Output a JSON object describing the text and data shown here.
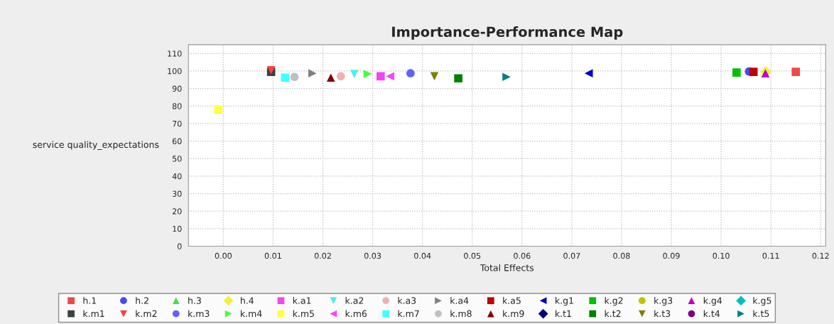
{
  "chart_data": {
    "type": "scatter",
    "title": "Importance-Performance Map",
    "xlabel": "Total Effects",
    "ylabel": "service quality_expectations",
    "xlim": [
      -0.007,
      0.121
    ],
    "xticks": [
      {
        "value": 0,
        "label": "0.00"
      },
      0.01,
      0.02,
      0.03,
      0.04,
      0.05,
      0.06,
      0.07,
      0.08,
      0.09,
      {
        "value": 0.1,
        "label": "0.10"
      },
      0.11,
      {
        "value": 0.12,
        "label": "0.12"
      }
    ],
    "ylim": [
      0,
      115
    ],
    "yticks": [
      0,
      10,
      20,
      30,
      40,
      50,
      60,
      70,
      80,
      90,
      100,
      110
    ],
    "grid": true,
    "legend": "bottom",
    "series": [
      {
        "name": "h.1",
        "color": "#f04848",
        "marker": "square",
        "x": [
          0.115
        ],
        "values": [
          99.5
        ]
      },
      {
        "name": "h.2",
        "color": "#4848f0",
        "marker": "circle",
        "x": [
          0.1056
        ],
        "values": [
          99.7
        ]
      },
      {
        "name": "h.3",
        "color": "#48e048",
        "marker": "triangle",
        "x": [
          null
        ],
        "values": [
          null
        ]
      },
      {
        "name": "h.4",
        "color": "#f0f040",
        "marker": "diamond",
        "x": [
          0.109
        ],
        "values": [
          99.5
        ]
      },
      {
        "name": "k.a1",
        "color": "#f048f0",
        "marker": "square",
        "x": [
          0.0316
        ],
        "values": [
          97
        ]
      },
      {
        "name": "k.a2",
        "color": "#48f0f0",
        "marker": "triangle_down",
        "x": [
          0.0263
        ],
        "values": [
          98.3
        ]
      },
      {
        "name": "k.a3",
        "color": "#f0b0b0",
        "marker": "circle",
        "x": [
          0.0236
        ],
        "values": [
          97
        ]
      },
      {
        "name": "k.a4",
        "color": "#808080",
        "marker": "triangle_right",
        "x": [
          0.0179
        ],
        "values": [
          98.7
        ]
      },
      {
        "name": "k.a5",
        "color": "#c00000",
        "marker": "square",
        "x": [
          0.1065
        ],
        "values": [
          99.5
        ]
      },
      {
        "name": "k.g1",
        "color": "#0000c0",
        "marker": "triangle_left",
        "x": [
          0.0734
        ],
        "values": [
          98.7
        ]
      },
      {
        "name": "k.g2",
        "color": "#00c000",
        "marker": "square",
        "x": [
          0.1031
        ],
        "values": [
          99.1
        ]
      },
      {
        "name": "k.g3",
        "color": "#c0c000",
        "marker": "circle",
        "x": [
          null
        ],
        "values": [
          null
        ]
      },
      {
        "name": "k.g4",
        "color": "#c000c0",
        "marker": "triangle",
        "x": [
          0.1089
        ],
        "values": [
          98.7
        ]
      },
      {
        "name": "k.g5",
        "color": "#00c0c0",
        "marker": "diamond",
        "x": [
          null
        ],
        "values": [
          null
        ]
      },
      {
        "name": "k.m1",
        "color": "#404040",
        "marker": "square",
        "x": [
          0.0096
        ],
        "values": [
          99.5
        ]
      },
      {
        "name": "k.m2",
        "color": "#ff4040",
        "marker": "triangle_down",
        "x": [
          0.0096
        ],
        "values": [
          100.5
        ]
      },
      {
        "name": "k.m3",
        "color": "#6060ff",
        "marker": "circle",
        "x": [
          0.0376
        ],
        "values": [
          98.7
        ]
      },
      {
        "name": "k.m4",
        "color": "#40ff40",
        "marker": "triangle_right",
        "x": [
          0.029
        ],
        "values": [
          98.3
        ]
      },
      {
        "name": "k.m5",
        "color": "#ffff40",
        "marker": "square",
        "x": [
          -0.001
        ],
        "values": [
          78
        ]
      },
      {
        "name": "k.m6",
        "color": "#ff40ff",
        "marker": "triangle_left",
        "x": [
          0.0335
        ],
        "values": [
          97
        ]
      },
      {
        "name": "k.m7",
        "color": "#40ffff",
        "marker": "square",
        "x": [
          0.0124
        ],
        "values": [
          96.2
        ]
      },
      {
        "name": "k.m8",
        "color": "#c0c0c0",
        "marker": "circle",
        "x": [
          0.0143
        ],
        "values": [
          96.6
        ]
      },
      {
        "name": "k.m9",
        "color": "#800000",
        "marker": "triangle",
        "x": [
          0.0216
        ],
        "values": [
          96.2
        ]
      },
      {
        "name": "k.t1",
        "color": "#000080",
        "marker": "diamond",
        "x": [
          null
        ],
        "values": [
          null
        ]
      },
      {
        "name": "k.t2",
        "color": "#008000",
        "marker": "square",
        "x": [
          0.0472
        ],
        "values": [
          95.8
        ]
      },
      {
        "name": "k.t3",
        "color": "#808000",
        "marker": "triangle_down",
        "x": [
          0.0424
        ],
        "values": [
          97
        ]
      },
      {
        "name": "k.t4",
        "color": "#800080",
        "marker": "circle",
        "x": [
          null
        ],
        "values": [
          null
        ]
      },
      {
        "name": "k.t5",
        "color": "#008080",
        "marker": "triangle_right",
        "x": [
          0.0569
        ],
        "values": [
          96.6
        ]
      }
    ]
  }
}
